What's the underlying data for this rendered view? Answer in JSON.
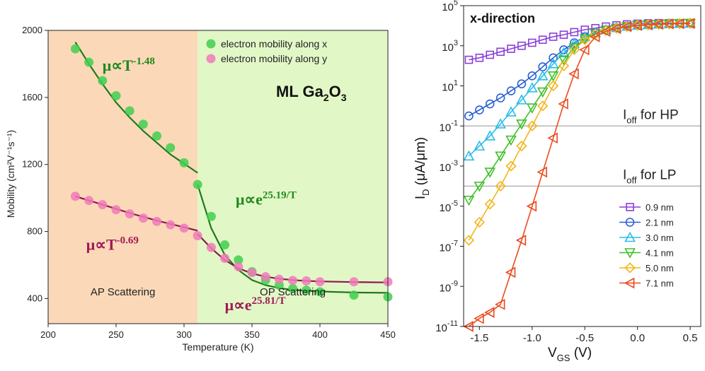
{
  "chart_data": [
    {
      "type": "scatter",
      "xlabel": "Temperature (K)",
      "ylabel": "Mobility (cm²V⁻¹s⁻¹)",
      "xlim": [
        200,
        450
      ],
      "ylim": [
        250,
        2000
      ],
      "xticks": [
        200,
        250,
        300,
        350,
        400,
        450
      ],
      "yticks": [
        400,
        800,
        1200,
        1600,
        2000
      ],
      "title_main": "ML Ga",
      "title_sub2": "2",
      "title_mid": "O",
      "title_sub3": "3",
      "regions": [
        {
          "label": "AP Scattering",
          "x": [
            200,
            310
          ],
          "color": "#fbd9b8"
        },
        {
          "label": "OP Scattering",
          "x": [
            310,
            450
          ],
          "color": "#e2f7c6"
        }
      ],
      "series": [
        {
          "name": "electron mobility along x",
          "color": "#3fcf4f",
          "line_color": "#1f7a1f",
          "x": [
            220,
            230,
            240,
            250,
            260,
            270,
            280,
            290,
            300,
            310,
            320,
            330,
            340,
            350,
            360,
            370,
            380,
            390,
            400,
            425,
            450
          ],
          "y": [
            1890,
            1810,
            1700,
            1610,
            1520,
            1440,
            1370,
            1300,
            1210,
            1080,
            890,
            720,
            630,
            560,
            510,
            480,
            460,
            450,
            440,
            420,
            410
          ],
          "fits": [
            {
              "x": [
                220,
                230,
                240,
                250,
                260,
                270,
                280,
                290,
                300,
                310
              ],
              "y": [
                1930,
                1800,
                1680,
                1570,
                1480,
                1400,
                1330,
                1260,
                1205,
                1150
              ]
            },
            {
              "x": [
                310,
                320,
                330,
                340,
                350,
                360,
                370,
                380,
                390,
                400,
                425,
                450
              ],
              "y": [
                1080,
                820,
                660,
                570,
                510,
                480,
                462,
                452,
                446,
                442,
                436,
                434
              ]
            }
          ]
        },
        {
          "name": "electron mobility along y",
          "color": "#f07ab8",
          "line_color": "#8a1850",
          "x": [
            220,
            230,
            240,
            250,
            260,
            270,
            280,
            290,
            300,
            310,
            320,
            330,
            340,
            350,
            360,
            370,
            380,
            390,
            400,
            425,
            450
          ],
          "y": [
            1010,
            985,
            960,
            930,
            905,
            880,
            860,
            840,
            820,
            775,
            705,
            640,
            590,
            555,
            530,
            515,
            508,
            505,
            500,
            500,
            500
          ],
          "fits": [
            {
              "x": [
                220,
                240,
                260,
                280,
                300,
                310
              ],
              "y": [
                1010,
                960,
                910,
                865,
                825,
                805
              ]
            },
            {
              "x": [
                310,
                320,
                330,
                340,
                350,
                360,
                370,
                380,
                390,
                400,
                425,
                450
              ],
              "y": [
                785,
                700,
                630,
                580,
                550,
                530,
                518,
                510,
                505,
                502,
                498,
                496
              ]
            }
          ]
        }
      ],
      "annotations": [
        {
          "base": "μ∝T",
          "sup": "-1.48",
          "x": 240,
          "y": 1760,
          "cls": "ann-g"
        },
        {
          "base": "μ∝e",
          "sup": "25.19/T",
          "x": 338,
          "y": 960,
          "cls": "ann-g"
        },
        {
          "base": "μ∝T",
          "sup": "-0.69",
          "x": 228,
          "y": 690,
          "cls": "ann-p"
        },
        {
          "base": "μ∝e",
          "sup": "25.81/T",
          "x": 330,
          "y": 330,
          "cls": "ann-p"
        }
      ]
    },
    {
      "type": "line",
      "yscale": "log",
      "title": "x-direction",
      "xlabel_main": "V",
      "xlabel_sub": "GS",
      "xlabel_end": " (V)",
      "ylabel_main": "I",
      "ylabel_sub": "D",
      "ylabel_end": " (μA/μm)",
      "xlim": [
        -1.65,
        0.6
      ],
      "ylim": [
        1e-11,
        100000.0
      ],
      "xticks": [
        "-1.5",
        "-1.0",
        "-0.5",
        "0.0",
        "0.5"
      ],
      "xtick_values": [
        -1.5,
        -1.0,
        -0.5,
        0.0,
        0.5
      ],
      "ytick_exps": [
        "5",
        "3",
        "1",
        "-1",
        "-3",
        "-5",
        "-7",
        "-9",
        "-11"
      ],
      "ytick_values": [
        5,
        3,
        1,
        -1,
        -3,
        -5,
        -7,
        -9,
        -11
      ],
      "hlines": [
        {
          "label_main": "I",
          "label_sub": "off",
          "label_end": " for HP",
          "y": 0.1
        },
        {
          "label_main": "I",
          "label_sub": "off",
          "label_end": " for LP",
          "y": 0.0001
        }
      ],
      "x": [
        -1.6,
        -1.5,
        -1.4,
        -1.3,
        -1.2,
        -1.1,
        -1.0,
        -0.9,
        -0.8,
        -0.7,
        -0.6,
        -0.5,
        -0.4,
        -0.3,
        -0.2,
        -0.1,
        0.0,
        0.1,
        0.2,
        0.3,
        0.4,
        0.5
      ],
      "series": [
        {
          "name": "0.9 nm",
          "color": "#8b3fd9",
          "marker": "square",
          "log_y": [
            2.3,
            2.4,
            2.55,
            2.7,
            2.85,
            3.0,
            3.15,
            3.3,
            3.45,
            3.55,
            3.68,
            3.8,
            3.88,
            3.96,
            4.02,
            4.07,
            4.1,
            4.12,
            4.13,
            4.13,
            4.13,
            4.13
          ]
        },
        {
          "name": "2.1 nm",
          "color": "#2a5fd4",
          "marker": "circle",
          "log_y": [
            -0.5,
            -0.2,
            0.1,
            0.4,
            0.75,
            1.1,
            1.5,
            1.95,
            2.4,
            2.8,
            3.15,
            3.45,
            3.65,
            3.8,
            3.9,
            3.98,
            4.02,
            4.06,
            4.08,
            4.1,
            4.11,
            4.12
          ]
        },
        {
          "name": "3.0 nm",
          "color": "#2bbcea",
          "marker": "triangle-up",
          "log_y": [
            -2.5,
            -2.0,
            -1.5,
            -0.9,
            -0.3,
            0.3,
            0.9,
            1.5,
            2.1,
            2.65,
            3.1,
            3.45,
            3.65,
            3.8,
            3.9,
            3.97,
            4.02,
            4.05,
            4.08,
            4.1,
            4.11,
            4.12
          ]
        },
        {
          "name": "4.1 nm",
          "color": "#3fbf2a",
          "marker": "triangle-down",
          "log_y": [
            -4.7,
            -4.0,
            -3.3,
            -2.5,
            -1.7,
            -0.9,
            -0.1,
            0.7,
            1.5,
            2.3,
            2.9,
            3.35,
            3.6,
            3.78,
            3.88,
            3.96,
            4.02,
            4.05,
            4.07,
            4.09,
            4.11,
            4.12
          ]
        },
        {
          "name": "5.0 nm",
          "color": "#f2b51a",
          "marker": "diamond",
          "log_y": [
            -6.7,
            -5.8,
            -4.9,
            -4.0,
            -3.0,
            -2.0,
            -1.0,
            0.0,
            1.0,
            2.0,
            2.8,
            3.3,
            3.58,
            3.76,
            3.88,
            3.96,
            4.02,
            4.05,
            4.07,
            4.09,
            4.11,
            4.12
          ]
        },
        {
          "name": "7.1 nm",
          "color": "#ec4a1f",
          "marker": "triangle-left",
          "log_y": [
            -11.0,
            -10.6,
            -10.3,
            -9.9,
            -8.3,
            -6.7,
            -5.0,
            -3.3,
            -1.6,
            0.1,
            1.6,
            2.8,
            3.45,
            3.72,
            3.86,
            3.95,
            4.01,
            4.04,
            4.07,
            4.09,
            4.1,
            4.11
          ]
        }
      ]
    }
  ]
}
